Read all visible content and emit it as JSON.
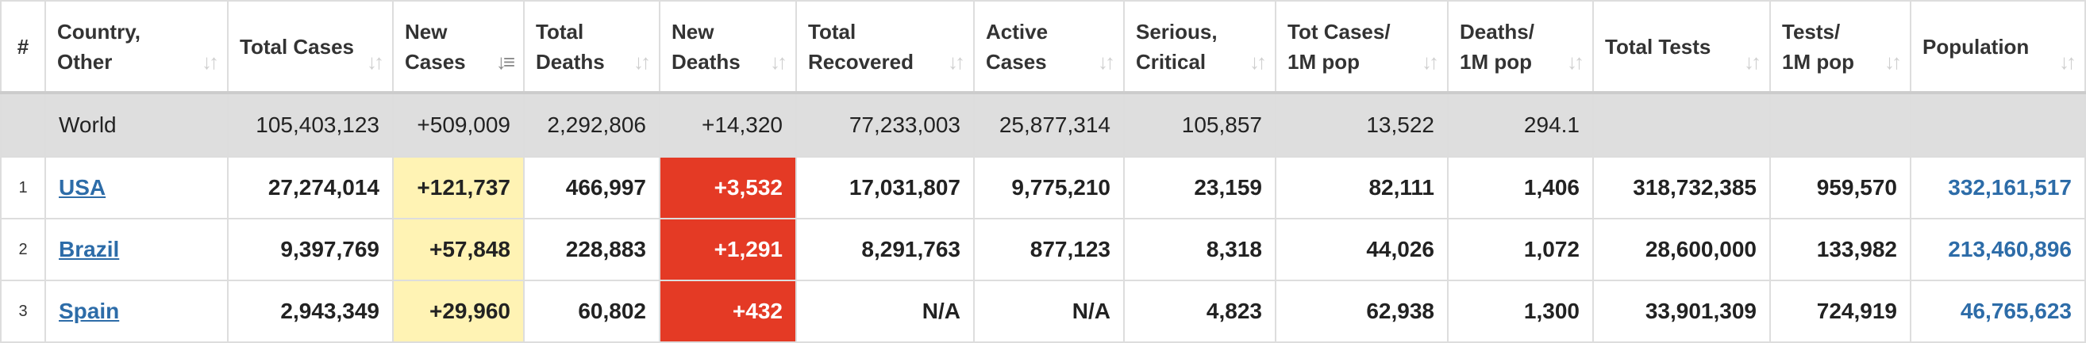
{
  "headers": [
    {
      "key": "index",
      "label": "#"
    },
    {
      "key": "country",
      "label": "Country, Other"
    },
    {
      "key": "total_cases",
      "label": "Total Cases"
    },
    {
      "key": "new_cases",
      "label": "New Cases"
    },
    {
      "key": "total_deaths",
      "label": "Total Deaths"
    },
    {
      "key": "new_deaths",
      "label": "New Deaths"
    },
    {
      "key": "total_recovered",
      "label": "Total Recovered"
    },
    {
      "key": "active_cases",
      "label": "Active Cases"
    },
    {
      "key": "serious_critical",
      "label": "Serious, Critical"
    },
    {
      "key": "tot_cases_1m",
      "label": "Tot Cases/ 1M pop"
    },
    {
      "key": "deaths_1m",
      "label": "Deaths/ 1M pop"
    },
    {
      "key": "total_tests",
      "label": "Total Tests"
    },
    {
      "key": "tests_1m",
      "label": "Tests/ 1M pop"
    },
    {
      "key": "population",
      "label": "Population"
    }
  ],
  "sort_icons": {
    "default": "↓↑",
    "active": "↓≡"
  },
  "world": {
    "country": "World",
    "total_cases": "105,403,123",
    "new_cases": "+509,009",
    "total_deaths": "2,292,806",
    "new_deaths": "+14,320",
    "total_recovered": "77,233,003",
    "active_cases": "25,877,314",
    "serious_critical": "105,857",
    "tot_cases_1m": "13,522",
    "deaths_1m": "294.1",
    "total_tests": "",
    "tests_1m": "",
    "population": ""
  },
  "rows": [
    {
      "index": "1",
      "country": "USA",
      "total_cases": "27,274,014",
      "new_cases": "+121,737",
      "total_deaths": "466,997",
      "new_deaths": "+3,532",
      "total_recovered": "17,031,807",
      "active_cases": "9,775,210",
      "serious_critical": "23,159",
      "tot_cases_1m": "82,111",
      "deaths_1m": "1,406",
      "total_tests": "318,732,385",
      "tests_1m": "959,570",
      "population": "332,161,517"
    },
    {
      "index": "2",
      "country": "Brazil",
      "total_cases": "9,397,769",
      "new_cases": "+57,848",
      "total_deaths": "228,883",
      "new_deaths": "+1,291",
      "total_recovered": "8,291,763",
      "active_cases": "877,123",
      "serious_critical": "8,318",
      "tot_cases_1m": "44,026",
      "deaths_1m": "1,072",
      "total_tests": "28,600,000",
      "tests_1m": "133,982",
      "population": "213,460,896"
    },
    {
      "index": "3",
      "country": "Spain",
      "total_cases": "2,943,349",
      "new_cases": "+29,960",
      "total_deaths": "60,802",
      "new_deaths": "+432",
      "total_recovered": "N/A",
      "active_cases": "N/A",
      "serious_critical": "4,823",
      "tot_cases_1m": "62,938",
      "deaths_1m": "1,300",
      "total_tests": "33,901,309",
      "tests_1m": "724,919",
      "population": "46,765,623"
    }
  ],
  "colors": {
    "new_cases_bg": "#fff3b4",
    "new_deaths_bg": "#e43a25",
    "link": "#2d6ca8",
    "world_row_bg": "#dedede"
  }
}
